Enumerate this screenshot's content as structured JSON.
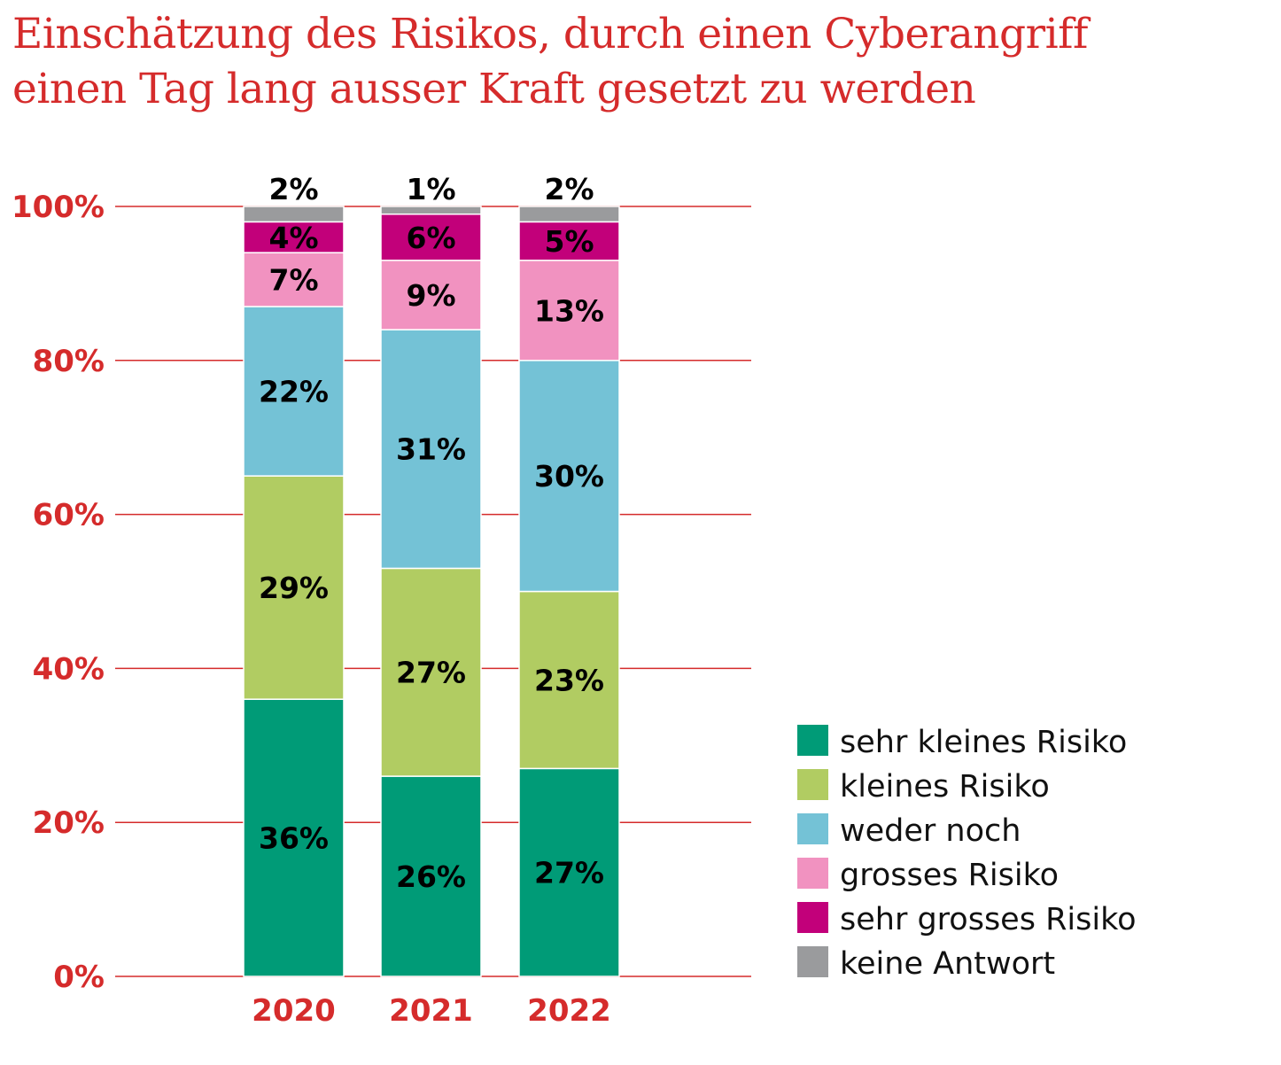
{
  "title_lines": [
    "Einschätzung des Risikos, durch einen Cyberangriff",
    "einen Tag lang ausser Kraft gesetzt zu werden"
  ],
  "chart_data": {
    "type": "bar",
    "stacked": true,
    "title": "Einschätzung des Risikos, durch einen Cyberangriff einen Tag lang ausser Kraft gesetzt zu werden",
    "categories": [
      "2020",
      "2021",
      "2022"
    ],
    "series": [
      {
        "name": "sehr kleines Risiko",
        "values": [
          36,
          26,
          27
        ],
        "color": "#009B77"
      },
      {
        "name": "kleines Risiko",
        "values": [
          29,
          27,
          23
        ],
        "color": "#B1CC62"
      },
      {
        "name": "weder noch",
        "values": [
          22,
          31,
          30
        ],
        "color": "#74C2D6"
      },
      {
        "name": "grosses Risiko",
        "values": [
          7,
          9,
          13
        ],
        "color": "#F192C0"
      },
      {
        "name": "sehr grosses Risiko",
        "values": [
          4,
          6,
          5
        ],
        "color": "#C2007A"
      },
      {
        "name": "keine Antwort",
        "values": [
          2,
          1,
          2
        ],
        "color": "#9A9B9D"
      }
    ],
    "ylim": [
      0,
      100
    ],
    "yticks": [
      "0%",
      "20%",
      "40%",
      "60%",
      "80%",
      "100%"
    ],
    "grid": true,
    "legend_position": "bottom-right",
    "accent_color": "#D52B2B"
  }
}
